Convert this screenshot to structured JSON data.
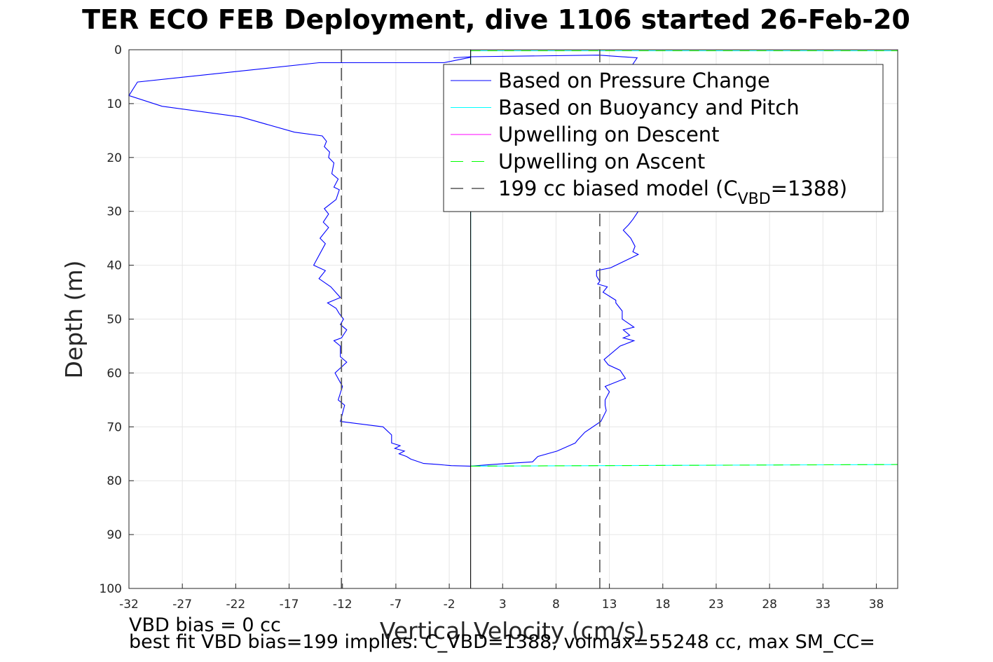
{
  "title": "TER ECO FEB Deployment, dive 1106 started 26-Feb-20",
  "footer": {
    "line1": "VBD bias = 0 cc",
    "line2": "best fit VBD bias=199 implies: C_VBD=1388, volmax=55248 cc, max SM_CC="
  },
  "chart_data": {
    "type": "line",
    "xlabel": "Vertical Velocity (cm/s)",
    "ylabel": "Depth (m)",
    "xlim": [
      -32,
      40
    ],
    "ylim": [
      0,
      100
    ],
    "y_reversed": true,
    "grid": true,
    "xticks": [
      -32,
      -27,
      -22,
      -17,
      -12,
      -7,
      -2,
      3,
      8,
      13,
      18,
      23,
      28,
      33,
      38
    ],
    "yticks": [
      0,
      10,
      20,
      30,
      40,
      50,
      60,
      70,
      80,
      90,
      100
    ],
    "legend_position": "top-right",
    "legend": [
      {
        "label": "Based on Pressure Change",
        "color": "#0000ff",
        "style": "solid"
      },
      {
        "label": "Based on Buoyancy and Pitch",
        "color": "#00ffff",
        "style": "solid"
      },
      {
        "label": "Upwelling on Descent",
        "color": "#ff00ff",
        "style": "solid"
      },
      {
        "label": "Upwelling on Ascent",
        "color": "#00ff00",
        "style": "dashed"
      },
      {
        "label_prefix": "199 cc biased model (C",
        "label_sub": "VBD",
        "label_suffix": "=1388)",
        "color": "#000000",
        "style": "dashed"
      }
    ],
    "series": [
      {
        "name": "Based on Pressure Change",
        "color": "#0000ff",
        "style": "solid",
        "x": [
          0.0,
          -2.5,
          -14.2,
          -31.2,
          -32.0,
          -28.9,
          -21.5,
          -16.5,
          -13.9,
          -13.5,
          -13.7,
          -13.2,
          -13.3,
          -12.8,
          -13.0,
          -12.4,
          -12.8,
          -12.3,
          -12.6,
          -13.7,
          -13.3,
          -13.8,
          -13.3,
          -14.1,
          -13.6,
          -14.7,
          -13.6,
          -14.2,
          -13.1,
          -12.2,
          -13.4,
          -12.6,
          -12.3,
          -11.9,
          -12.2,
          -11.6,
          -12.1,
          -12.8,
          -12.2,
          -12.2,
          -11.6,
          -12.7,
          -12.0,
          -12.4,
          -11.8,
          -12.2,
          -8.2,
          -7.4,
          -7.4,
          -7.4,
          -6.6,
          -7.1,
          -6.2,
          -6.7,
          -6.0,
          -5.6,
          -4.4,
          -3.0,
          -1.8,
          0.0
        ],
        "y": [
          1.4,
          2.4,
          2.4,
          6.0,
          8.5,
          10.5,
          12.5,
          15.3,
          16.0,
          17.0,
          18.0,
          19.0,
          20.0,
          21.0,
          23.0,
          24.0,
          25.5,
          26.0,
          27.8,
          29.5,
          30.5,
          32.0,
          33.0,
          35.0,
          36.0,
          40.0,
          41.0,
          42.5,
          44.0,
          46.0,
          47.0,
          48.0,
          49.0,
          50.0,
          51.0,
          52.0,
          53.5,
          54.0,
          55.0,
          57.0,
          58.0,
          60.0,
          62.5,
          65.0,
          66.0,
          69.0,
          70.0,
          71.5,
          72.0,
          73.0,
          73.5,
          74.0,
          74.5,
          75.0,
          75.5,
          76.0,
          76.8,
          77.0,
          77.2,
          77.3
        ]
      },
      {
        "name": "Based on Pressure Change",
        "color": "#0000ff",
        "style": "solid",
        "x": [
          -1.6,
          0.0,
          12.0,
          15.6,
          12.7,
          14.8,
          15.3,
          16.0,
          15.7,
          15.2,
          14.8,
          14.3,
          15.0,
          15.4,
          15.2,
          15.7,
          13.1,
          11.8,
          11.8,
          12.1,
          11.9,
          12.8,
          12.4,
          13.6,
          13.6,
          14.2,
          14.2,
          15.3,
          14.3,
          14.9,
          14.3,
          15.3,
          14.0,
          12.5,
          12.9,
          14.0,
          14.5,
          12.6,
          13.0,
          12.6,
          12.6,
          12.7,
          12.2,
          10.7,
          10.0,
          9.8,
          8.1,
          6.3,
          5.8,
          2.0,
          0.0
        ],
        "y": [
          1.5,
          1.3,
          1.0,
          1.5,
          10.0,
          15.0,
          20.0,
          25.0,
          30.0,
          31.5,
          32.5,
          33.5,
          35.0,
          36.5,
          37.5,
          38.0,
          40.5,
          41.0,
          42.0,
          43.0,
          43.5,
          44.0,
          45.0,
          46.5,
          47.0,
          48.5,
          50.0,
          51.5,
          52.0,
          53.0,
          53.5,
          54.0,
          55.0,
          57.5,
          58.5,
          59.5,
          61.0,
          62.5,
          63.5,
          65.0,
          66.0,
          67.0,
          69.0,
          71.0,
          72.5,
          73.0,
          74.5,
          75.5,
          76.5,
          77.0,
          77.3
        ]
      },
      {
        "name": "Based on Buoyancy and Pitch",
        "color": "#00ffff",
        "style": "solid",
        "x": [
          0.0,
          0.0,
          0.0,
          40.0
        ],
        "y": [
          77.2,
          0.2,
          0.2,
          0.2
        ]
      },
      {
        "name": "Based on Buoyancy and Pitch",
        "color": "#00ffff",
        "style": "solid",
        "x": [
          0.0,
          40.0
        ],
        "y": [
          77.3,
          77.0
        ]
      },
      {
        "name": "Upwelling on Ascent",
        "color": "#00ff00",
        "style": "dashed",
        "x": [
          0.0,
          40.0
        ],
        "y": [
          0.2,
          0.2
        ]
      },
      {
        "name": "Upwelling on Ascent",
        "color": "#00ff00",
        "style": "dashed",
        "x": [
          0.0,
          40.0
        ],
        "y": [
          77.3,
          77.0
        ]
      },
      {
        "name": "199 cc biased model",
        "color": "#555555",
        "style": "dashed",
        "x": [
          -12.1,
          -12.1
        ],
        "y": [
          0,
          100
        ]
      },
      {
        "name": "199 cc biased model",
        "color": "#555555",
        "style": "dashed",
        "x": [
          12.1,
          12.1
        ],
        "y": [
          0,
          100
        ]
      },
      {
        "name": "zero line",
        "color": "#000000",
        "style": "solid",
        "x": [
          0.0,
          0.0
        ],
        "y": [
          0,
          100
        ]
      }
    ]
  }
}
